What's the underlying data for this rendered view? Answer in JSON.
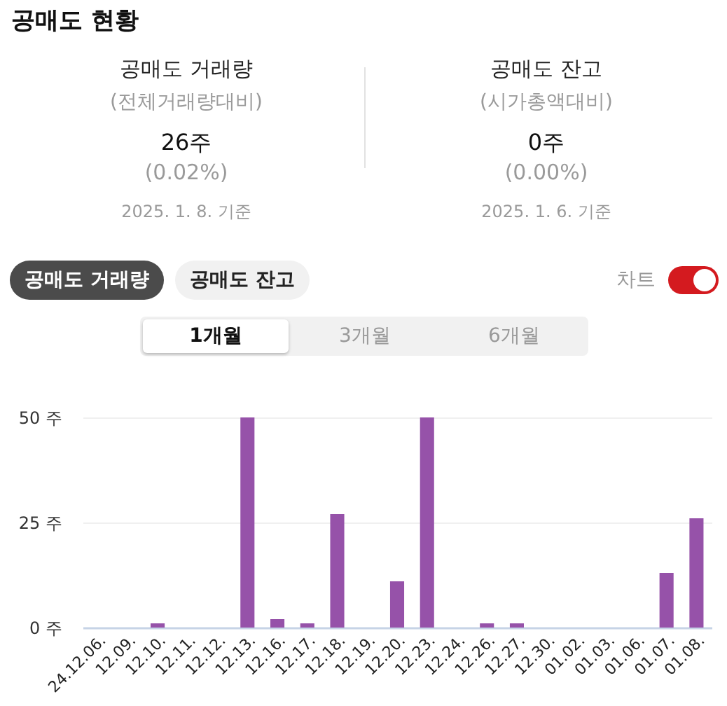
{
  "chart_data": [
    {
      "type": "other",
      "title": "공매도 현황",
      "annotations": [
        "공매도 거래량",
        "(전체거래량대비)",
        "26주",
        "(0.02%)",
        "2025. 1. 8. 기준",
        "공매도 잔고",
        "(시가총액대비)",
        "0주",
        "(0.00%)",
        "2025. 1. 6. 기준"
      ]
    },
    {
      "type": "bar",
      "annotations": [
        "공매도 거래량",
        "공매도 잔고",
        "차트",
        "1개월",
        "3개월",
        "6개월"
      ],
      "categories": [
        "24.12.06.",
        "12.09.",
        "12.10.",
        "12.11.",
        "12.12.",
        "12.13.",
        "12.16.",
        "12.17.",
        "12.18.",
        "12.19.",
        "12.20.",
        "12.23.",
        "12.24.",
        "12.26.",
        "12.27.",
        "12.30.",
        "01.02.",
        "01.03.",
        "01.06.",
        "01.07.",
        "01.08."
      ],
      "values": [
        0,
        0,
        1,
        0,
        0,
        50,
        2,
        1,
        27,
        0,
        11,
        50,
        0,
        1,
        1,
        0,
        0,
        0,
        0,
        13,
        26
      ],
      "color": "#9652a9",
      "ylim": [
        0,
        50
      ],
      "yticks": [
        {
          "value": 0,
          "label": "0 주"
        },
        {
          "value": 25,
          "label": "25 주"
        },
        {
          "value": 50,
          "label": "50 주"
        }
      ],
      "grid": "y"
    }
  ]
}
